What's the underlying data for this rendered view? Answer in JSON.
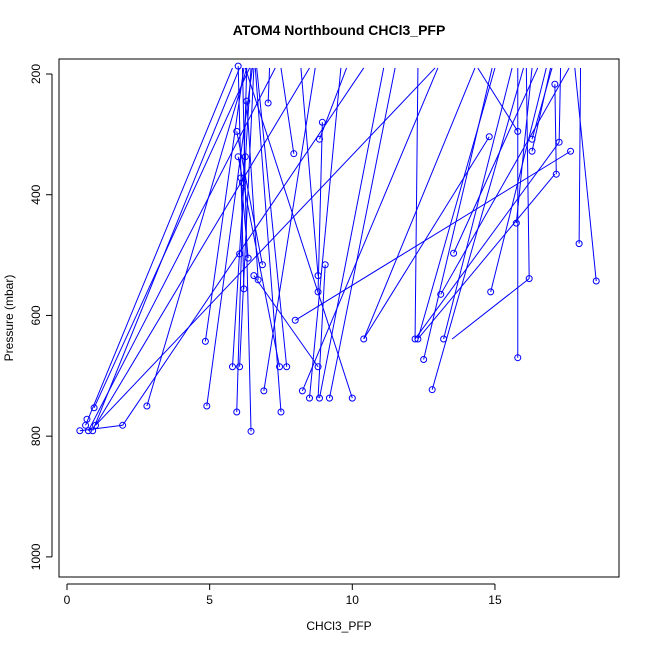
{
  "chart_data": {
    "type": "scatter",
    "title": "ATOM4 Northbound CHCl3_PFP",
    "xlabel": "CHCl3_PFP",
    "ylabel": "Pressure (mbar)",
    "xlim": [
      0,
      19
    ],
    "ylim": [
      1035,
      180
    ],
    "y_inverted": true,
    "x_ticks": [
      0,
      5,
      10,
      15
    ],
    "y_ticks": [
      200,
      400,
      600,
      800,
      1000
    ],
    "series_color": "#0000ff",
    "series": [
      {
        "points": [
          [
            0.45,
            791
          ],
          [
            0.65,
            782
          ],
          [
            0.7,
            772
          ],
          [
            0.75,
            791
          ],
          [
            0.9,
            791
          ],
          [
            0.95,
            753
          ],
          [
            1.0,
            782
          ],
          [
            1.95,
            782
          ],
          [
            2.8,
            750
          ],
          [
            4.85,
            643
          ],
          [
            4.9,
            750
          ],
          [
            5.8,
            685
          ],
          [
            5.95,
            760
          ],
          [
            5.95,
            295
          ],
          [
            6.0,
            187
          ],
          [
            6.0,
            337
          ],
          [
            6.05,
            498
          ],
          [
            6.05,
            685
          ],
          [
            6.1,
            372
          ],
          [
            6.15,
            380
          ],
          [
            6.2,
            556
          ],
          [
            6.25,
            337
          ],
          [
            6.3,
            245
          ],
          [
            6.35,
            505
          ],
          [
            6.45,
            792
          ],
          [
            6.55,
            534
          ],
          [
            6.7,
            541
          ],
          [
            6.85,
            516
          ],
          [
            6.9,
            725
          ],
          [
            7.05,
            248
          ],
          [
            7.45,
            685
          ],
          [
            7.5,
            760
          ],
          [
            7.7,
            685
          ],
          [
            7.95,
            332
          ],
          [
            8.0,
            608
          ],
          [
            8.25,
            725
          ],
          [
            8.5,
            737
          ],
          [
            8.8,
            685
          ],
          [
            8.8,
            534
          ],
          [
            8.8,
            561
          ],
          [
            8.85,
            737
          ],
          [
            8.85,
            308
          ],
          [
            8.95,
            280
          ],
          [
            9.05,
            516
          ],
          [
            9.2,
            737
          ],
          [
            10.0,
            737
          ],
          [
            10.4,
            639
          ],
          [
            12.2,
            639
          ],
          [
            12.3,
            639
          ],
          [
            12.5,
            673
          ],
          [
            12.8,
            723
          ],
          [
            13.1,
            565
          ],
          [
            13.2,
            639
          ],
          [
            13.55,
            497
          ],
          [
            14.8,
            304
          ],
          [
            14.85,
            561
          ],
          [
            15.8,
            670
          ],
          [
            15.75,
            447
          ],
          [
            15.8,
            295
          ],
          [
            16.2,
            539
          ],
          [
            16.3,
            328
          ],
          [
            16.3,
            308
          ],
          [
            17.1,
            217
          ],
          [
            17.15,
            366
          ],
          [
            17.25,
            313
          ],
          [
            17.65,
            328
          ],
          [
            17.95,
            481
          ],
          [
            18.55,
            543
          ]
        ]
      }
    ],
    "segments": [
      [
        [
          0.65,
          782
        ],
        [
          5.8,
          190
        ]
      ],
      [
        [
          0.75,
          791
        ],
        [
          7.3,
          190
        ]
      ],
      [
        [
          0.9,
          791
        ],
        [
          6.05,
          190
        ]
      ],
      [
        [
          1.0,
          782
        ],
        [
          8.5,
          190
        ]
      ],
      [
        [
          0.95,
          753
        ],
        [
          6.4,
          190
        ]
      ],
      [
        [
          1.0,
          782
        ],
        [
          12.9,
          190
        ]
      ],
      [
        [
          1.95,
          782
        ],
        [
          10.4,
          190
        ]
      ],
      [
        [
          2.8,
          750
        ],
        [
          6.3,
          190
        ]
      ],
      [
        [
          4.85,
          643
        ],
        [
          6.2,
          190
        ]
      ],
      [
        [
          4.9,
          750
        ],
        [
          6.5,
          190
        ]
      ],
      [
        [
          5.8,
          685
        ],
        [
          6.45,
          190
        ]
      ],
      [
        [
          5.95,
          760
        ],
        [
          6.3,
          190
        ]
      ],
      [
        [
          6.05,
          685
        ],
        [
          6.55,
          190
        ]
      ],
      [
        [
          6.45,
          792
        ],
        [
          6.15,
          190
        ]
      ],
      [
        [
          6.9,
          725
        ],
        [
          8.7,
          190
        ]
      ],
      [
        [
          7.5,
          760
        ],
        [
          6.6,
          190
        ]
      ],
      [
        [
          7.7,
          685
        ],
        [
          6.65,
          190
        ]
      ],
      [
        [
          8.25,
          725
        ],
        [
          13.0,
          190
        ]
      ],
      [
        [
          8.5,
          737
        ],
        [
          9.6,
          190
        ]
      ],
      [
        [
          8.85,
          737
        ],
        [
          11.1,
          190
        ]
      ],
      [
        [
          9.2,
          737
        ],
        [
          11.5,
          190
        ]
      ],
      [
        [
          10.0,
          737
        ],
        [
          6.25,
          190
        ]
      ],
      [
        [
          10.4,
          639
        ],
        [
          14.8,
          304
        ]
      ],
      [
        [
          12.3,
          639
        ],
        [
          15.0,
          190
        ]
      ],
      [
        [
          12.5,
          673
        ],
        [
          14.9,
          190
        ]
      ],
      [
        [
          12.8,
          723
        ],
        [
          16.0,
          190
        ]
      ],
      [
        [
          13.2,
          639
        ],
        [
          15.6,
          190
        ]
      ],
      [
        [
          13.55,
          497
        ],
        [
          16.5,
          190
        ]
      ],
      [
        [
          14.85,
          561
        ],
        [
          16.8,
          190
        ]
      ],
      [
        [
          15.8,
          670
        ],
        [
          15.8,
          190
        ]
      ],
      [
        [
          16.2,
          539
        ],
        [
          16.1,
          190
        ]
      ],
      [
        [
          17.1,
          217
        ],
        [
          17.15,
          366
        ]
      ],
      [
        [
          17.95,
          481
        ],
        [
          18.0,
          190
        ]
      ],
      [
        [
          18.55,
          543
        ],
        [
          17.8,
          190
        ]
      ],
      [
        [
          12.2,
          639
        ],
        [
          17.25,
          313
        ]
      ],
      [
        [
          8.0,
          608
        ],
        [
          17.65,
          328
        ]
      ],
      [
        [
          6.55,
          534
        ],
        [
          8.8,
          685
        ]
      ],
      [
        [
          8.8,
          561
        ],
        [
          8.95,
          280
        ]
      ],
      [
        [
          9.05,
          516
        ],
        [
          8.8,
          737
        ]
      ],
      [
        [
          13.1,
          565
        ],
        [
          17.6,
          190
        ]
      ],
      [
        [
          13.5,
          639
        ],
        [
          16.2,
          539
        ]
      ],
      [
        [
          15.75,
          447
        ],
        [
          16.3,
          190
        ]
      ],
      [
        [
          7.95,
          332
        ],
        [
          7.5,
          190
        ]
      ],
      [
        [
          7.05,
          248
        ],
        [
          7.1,
          190
        ]
      ],
      [
        [
          6.85,
          516
        ],
        [
          5.95,
          295
        ]
      ],
      [
        [
          6.0,
          337
        ],
        [
          7.45,
          685
        ]
      ],
      [
        [
          6.2,
          556
        ],
        [
          6.0,
          187
        ]
      ],
      [
        [
          6.3,
          245
        ],
        [
          6.7,
          541
        ]
      ],
      [
        [
          6.35,
          505
        ],
        [
          6.1,
          372
        ]
      ],
      [
        [
          0.45,
          791
        ],
        [
          1.95,
          782
        ]
      ],
      [
        [
          8.85,
          308
        ],
        [
          9.8,
          190
        ]
      ],
      [
        [
          15.8,
          295
        ],
        [
          14.4,
          190
        ]
      ],
      [
        [
          16.3,
          328
        ],
        [
          16.95,
          190
        ]
      ],
      [
        [
          16.3,
          308
        ],
        [
          17.0,
          190
        ]
      ],
      [
        [
          17.25,
          313
        ],
        [
          17.3,
          190
        ]
      ],
      [
        [
          12.3,
          639
        ],
        [
          17.1,
          366
        ]
      ],
      [
        [
          10.4,
          639
        ],
        [
          14.3,
          190
        ]
      ],
      [
        [
          12.2,
          639
        ],
        [
          12.3,
          190
        ]
      ],
      [
        [
          8.8,
          534
        ],
        [
          8.2,
          190
        ]
      ]
    ]
  }
}
